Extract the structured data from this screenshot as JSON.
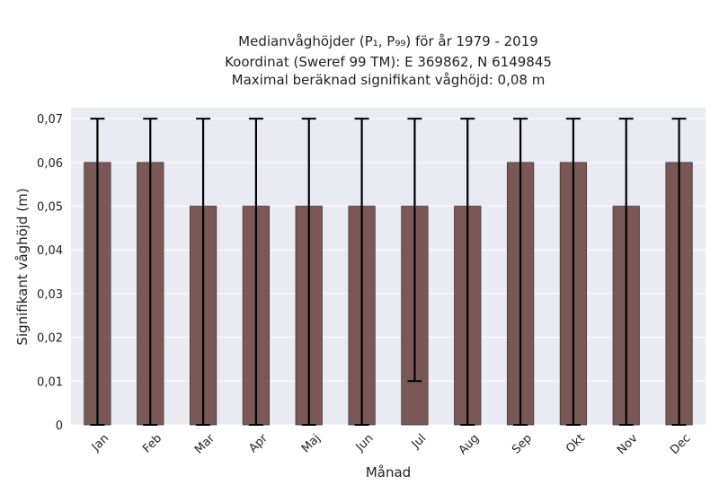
{
  "chart_data": {
    "type": "bar",
    "title_lines": [
      "Medianvåghöjder (P₁, P₉₉) för år 1979 - 2019",
      "Koordinat (Sweref 99 TM): E 369862, N 6149845",
      "Maximal beräknad signifikant våghöjd: 0,08 m"
    ],
    "xlabel": "Månad",
    "ylabel": "Signifikant våghöjd (m)",
    "categories": [
      "Jan",
      "Feb",
      "Mar",
      "Apr",
      "Maj",
      "Jun",
      "Jul",
      "Aug",
      "Sep",
      "Okt",
      "Nov",
      "Dec"
    ],
    "values": [
      0.06,
      0.06,
      0.05,
      0.05,
      0.05,
      0.05,
      0.05,
      0.05,
      0.06,
      0.06,
      0.05,
      0.06
    ],
    "p1": [
      0,
      0,
      0,
      0,
      0,
      0,
      0.01,
      0,
      0,
      0,
      0,
      0
    ],
    "p99": [
      0.07,
      0.07,
      0.07,
      0.07,
      0.07,
      0.07,
      0.07,
      0.07,
      0.07,
      0.07,
      0.07,
      0.07
    ],
    "ylim": [
      0,
      0.0725
    ],
    "yticks": [
      "0",
      "0,01",
      "0,02",
      "0,03",
      "0,04",
      "0,05",
      "0,06",
      "0,07"
    ],
    "ytick_values": [
      0,
      0.01,
      0.02,
      0.03,
      0.04,
      0.05,
      0.06,
      0.07
    ],
    "grid": true,
    "colors": {
      "bar": "#7a5858",
      "bar_edge": "#4a3232",
      "errorbar": "#000000",
      "plot_background": "#eaeaf2",
      "grid": "#ffffff"
    }
  }
}
